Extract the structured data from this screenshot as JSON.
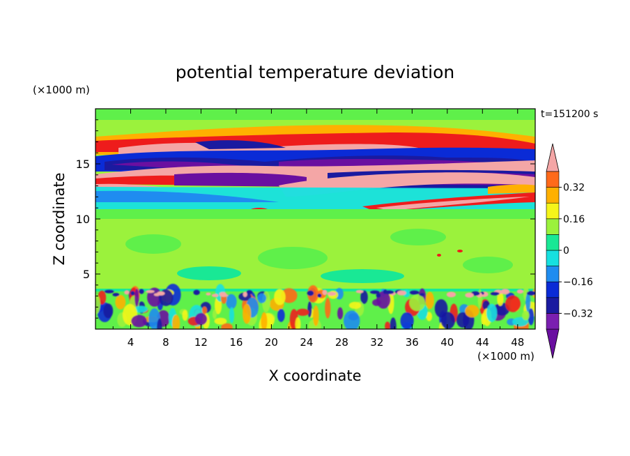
{
  "chart_data": {
    "type": "heatmap",
    "title": "potential temperature deviation",
    "xlabel": "X coordinate",
    "ylabel": "Z coordinate",
    "x_unit": "(×1000 m)",
    "y_unit": "(×1000 m)",
    "time_label": "t=151200 s",
    "xlim": [
      0,
      50
    ],
    "ylim": [
      0,
      20
    ],
    "x_ticks": [
      "4",
      "8",
      "12",
      "16",
      "20",
      "24",
      "28",
      "32",
      "36",
      "40",
      "44",
      "48"
    ],
    "y_ticks": [
      "5",
      "10",
      "15"
    ],
    "colorbar": {
      "levels": [
        -0.4,
        -0.32,
        -0.24,
        -0.16,
        -0.08,
        0,
        0.08,
        0.16,
        0.24,
        0.32,
        0.4
      ],
      "tick_labels": [
        "0.32",
        "0.16",
        "0",
        "−0.16",
        "−0.32"
      ],
      "colors": [
        "#6a0fa0",
        "#7a1fb0",
        "#1a1aa0",
        "#0a2bd6",
        "#1f8cf0",
        "#16e0e0",
        "#19e895",
        "#9bf23c",
        "#f5f51a",
        "#ffb000",
        "#ff6a1a",
        "#ee1c1c",
        "#f4a6a6"
      ]
    }
  }
}
